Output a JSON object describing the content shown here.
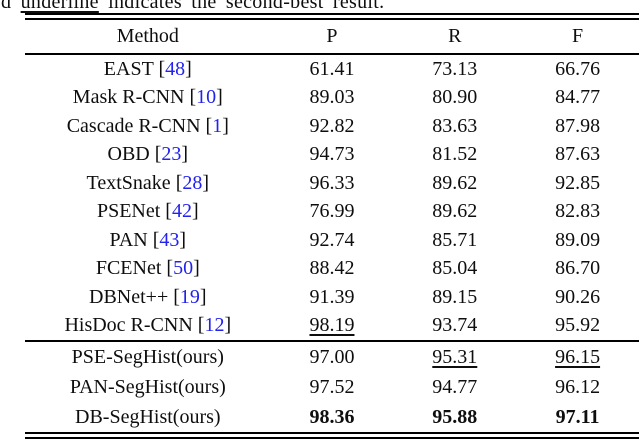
{
  "caption": {
    "prefix": "d ",
    "underlined_word": "underline",
    "suffix": " indicates the second-best result."
  },
  "colors": {
    "text": "#0e0e0e",
    "citation_blue": "#2222ee",
    "background": "#ffffff"
  },
  "table": {
    "headers": [
      "Method",
      "P",
      "R",
      "F"
    ],
    "rows": [
      {
        "method": "EAST",
        "cite": "48",
        "cells": [
          {
            "t": "61.41"
          },
          {
            "t": "73.13"
          },
          {
            "t": "66.76"
          }
        ]
      },
      {
        "method": "Mask R-CNN",
        "cite": "10",
        "cells": [
          {
            "t": "89.03"
          },
          {
            "t": "80.90"
          },
          {
            "t": "84.77"
          }
        ]
      },
      {
        "method": "Cascade R-CNN",
        "cite": "1",
        "cells": [
          {
            "t": "92.82"
          },
          {
            "t": "83.63"
          },
          {
            "t": "87.98"
          }
        ]
      },
      {
        "method": "OBD",
        "cite": "23",
        "cells": [
          {
            "t": "94.73"
          },
          {
            "t": "81.52"
          },
          {
            "t": "87.63"
          }
        ]
      },
      {
        "method": "TextSnake",
        "cite": "28",
        "cells": [
          {
            "t": "96.33"
          },
          {
            "t": "89.62"
          },
          {
            "t": "92.85"
          }
        ]
      },
      {
        "method": "PSENet",
        "cite": "42",
        "cells": [
          {
            "t": "76.99"
          },
          {
            "t": "89.62"
          },
          {
            "t": "82.83"
          }
        ]
      },
      {
        "method": "PAN",
        "cite": "43",
        "cells": [
          {
            "t": "92.74"
          },
          {
            "t": "85.71"
          },
          {
            "t": "89.09"
          }
        ]
      },
      {
        "method": "FCENet",
        "cite": "50",
        "cells": [
          {
            "t": "88.42"
          },
          {
            "t": "85.04"
          },
          {
            "t": "86.70"
          }
        ]
      },
      {
        "method": "DBNet++",
        "cite": "19",
        "cells": [
          {
            "t": "91.39"
          },
          {
            "t": "89.15"
          },
          {
            "t": "90.26"
          }
        ]
      },
      {
        "method": "HisDoc R-CNN",
        "cite": "12",
        "cells": [
          {
            "t": "98.19",
            "u": true
          },
          {
            "t": "93.74"
          },
          {
            "t": "95.92"
          }
        ]
      }
    ],
    "ours_rows": [
      {
        "method": "PSE-SegHist(ours)",
        "cells": [
          {
            "t": "97.00"
          },
          {
            "t": "95.31",
            "u": true
          },
          {
            "t": "96.15",
            "u": true
          }
        ]
      },
      {
        "method": "PAN-SegHist(ours)",
        "cells": [
          {
            "t": "97.52"
          },
          {
            "t": "94.77"
          },
          {
            "t": "96.12"
          }
        ]
      },
      {
        "method": "DB-SegHist(ours)",
        "cells": [
          {
            "t": "98.36",
            "b": true
          },
          {
            "t": "95.88",
            "b": true
          },
          {
            "t": "97.11",
            "b": true
          }
        ]
      }
    ]
  }
}
